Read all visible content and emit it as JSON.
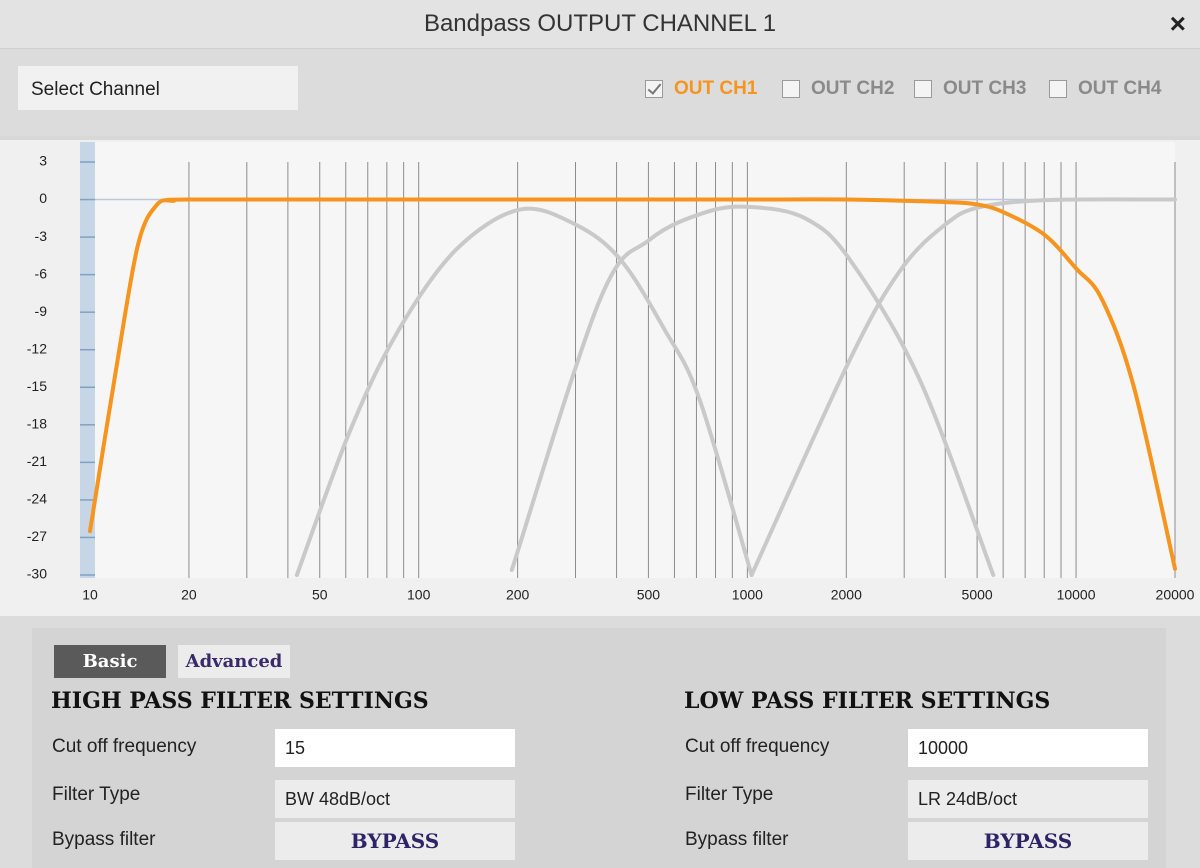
{
  "header": {
    "title": "Bandpass OUTPUT CHANNEL 1",
    "close": "×"
  },
  "select_channel": "Select Channel",
  "channels": [
    {
      "label": "OUT CH1",
      "checked": true
    },
    {
      "label": "OUT CH2",
      "checked": false
    },
    {
      "label": "OUT CH3",
      "checked": false
    },
    {
      "label": "OUT CH4",
      "checked": false
    }
  ],
  "chart_data": {
    "type": "line",
    "x_scale": "log",
    "xlim": [
      10,
      20000
    ],
    "ylim": [
      -30,
      3
    ],
    "xticks": [
      10,
      20,
      50,
      100,
      200,
      500,
      1000,
      2000,
      5000,
      10000,
      20000
    ],
    "xgrid": [
      20,
      30,
      40,
      50,
      60,
      70,
      80,
      90,
      100,
      200,
      300,
      400,
      500,
      600,
      700,
      800,
      900,
      1000,
      2000,
      3000,
      4000,
      5000,
      6000,
      7000,
      8000,
      9000,
      10000,
      20000
    ],
    "yticks": [
      3,
      0,
      -3,
      -6,
      -9,
      -12,
      -15,
      -18,
      -21,
      -24,
      -27,
      -30
    ],
    "series": [
      {
        "color": "#c9c9c9",
        "x": [
          42.6,
          62,
          87,
          130,
          203,
          300,
          411,
          560,
          716,
          1030
        ],
        "values": [
          -30,
          -18.4,
          -10.4,
          -4,
          -0.8,
          -2,
          -4.8,
          -10.4,
          -16,
          -30
        ]
      },
      {
        "color": "#c9c9c9",
        "x": [
          192,
          356,
          505,
          750,
          1030,
          1500,
          2050,
          3345,
          5600
        ],
        "values": [
          -29.6,
          -8,
          -3.2,
          -1,
          -0.6,
          -1.5,
          -4.8,
          -14.4,
          -30
        ]
      },
      {
        "color": "#c9c9c9",
        "x": [
          1030,
          2050,
          2930,
          4000,
          5100,
          8300,
          20000
        ],
        "values": [
          -30,
          -12.8,
          -5.6,
          -2,
          -0.6,
          -0.04,
          0
        ]
      },
      {
        "color": "#f7941d",
        "x": [
          10,
          12,
          14,
          16,
          18,
          20,
          100,
          1000,
          2000,
          4000,
          5000,
          6000,
          8000,
          10000,
          12000,
          15000,
          20000
        ],
        "values": [
          -26.5,
          -13.6,
          -3.6,
          -0.4,
          -0.1,
          0,
          0,
          0,
          0,
          -0.2,
          -0.4,
          -1,
          -2.8,
          -5.5,
          -8,
          -15,
          -29.5
        ]
      }
    ]
  },
  "tabs": [
    {
      "label": "Basic",
      "active": true
    },
    {
      "label": "Advanced",
      "active": false
    }
  ],
  "high_pass": {
    "title": "HIGH PASS FILTER SETTINGS",
    "rows": [
      {
        "label": "Cut off frequency",
        "value": 15
      },
      {
        "label": "Filter Type",
        "value": "BW 48dB/oct"
      },
      {
        "label": "Bypass filter",
        "value": "BYPASS"
      }
    ]
  },
  "low_pass": {
    "title": "LOW PASS FILTER SETTINGS",
    "rows": [
      {
        "label": "Cut off frequency",
        "value": 10000
      },
      {
        "label": "Filter Type",
        "value": "LR 24dB/oct"
      },
      {
        "label": "Bypass filter",
        "value": "BYPASS"
      }
    ]
  }
}
